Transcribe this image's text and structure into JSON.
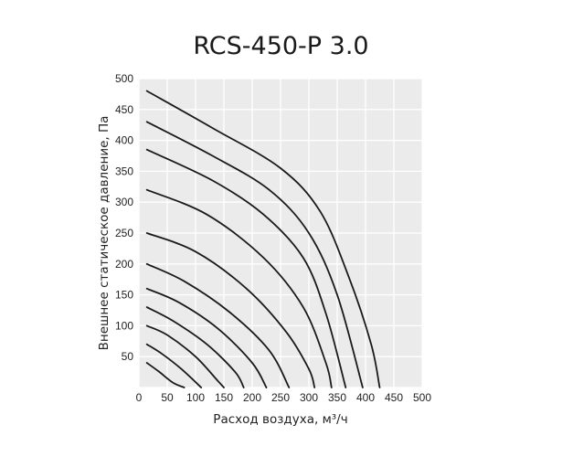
{
  "chart_data": {
    "type": "line",
    "title": "RCS-450-P 3.0",
    "xlabel": "Расход воздуха, м³/ч",
    "ylabel": "Внешнее статическое давление, Па",
    "xlim": [
      0,
      500
    ],
    "ylim": [
      0,
      500
    ],
    "x_ticks": [
      "0",
      "50",
      "100",
      "150",
      "200",
      "250",
      "300",
      "350",
      "400",
      "450",
      "500"
    ],
    "y_ticks": [
      "50",
      "100",
      "150",
      "200",
      "250",
      "300",
      "350",
      "400",
      "450",
      "500"
    ],
    "grid": true,
    "background": "#ebebeb",
    "line_color": "#1a1a1a",
    "series": [
      {
        "values": [
          [
            14,
            40
          ],
          [
            35,
            26
          ],
          [
            60,
            8
          ],
          [
            80,
            0
          ]
        ]
      },
      {
        "values": [
          [
            14,
            70
          ],
          [
            40,
            55
          ],
          [
            75,
            30
          ],
          [
            110,
            0
          ]
        ]
      },
      {
        "values": [
          [
            14,
            100
          ],
          [
            50,
            85
          ],
          [
            100,
            50
          ],
          [
            140,
            10
          ],
          [
            150,
            0
          ]
        ]
      },
      {
        "values": [
          [
            14,
            130
          ],
          [
            60,
            108
          ],
          [
            120,
            70
          ],
          [
            170,
            25
          ],
          [
            185,
            0
          ]
        ]
      },
      {
        "values": [
          [
            14,
            160
          ],
          [
            70,
            138
          ],
          [
            140,
            95
          ],
          [
            200,
            40
          ],
          [
            225,
            0
          ]
        ]
      },
      {
        "values": [
          [
            14,
            200
          ],
          [
            80,
            172
          ],
          [
            160,
            122
          ],
          [
            230,
            60
          ],
          [
            265,
            0
          ]
        ]
      },
      {
        "values": [
          [
            14,
            250
          ],
          [
            100,
            220
          ],
          [
            190,
            160
          ],
          [
            260,
            90
          ],
          [
            300,
            30
          ],
          [
            310,
            0
          ]
        ]
      },
      {
        "values": [
          [
            14,
            320
          ],
          [
            120,
            280
          ],
          [
            220,
            210
          ],
          [
            290,
            130
          ],
          [
            330,
            40
          ],
          [
            340,
            0
          ]
        ]
      },
      {
        "values": [
          [
            14,
            385
          ],
          [
            130,
            335
          ],
          [
            220,
            280
          ],
          [
            290,
            210
          ],
          [
            330,
            120
          ],
          [
            365,
            0
          ]
        ]
      },
      {
        "values": [
          [
            14,
            430
          ],
          [
            130,
            375
          ],
          [
            230,
            320
          ],
          [
            300,
            250
          ],
          [
            350,
            150
          ],
          [
            395,
            0
          ]
        ]
      },
      {
        "values": [
          [
            14,
            480
          ],
          [
            130,
            420
          ],
          [
            250,
            355
          ],
          [
            320,
            285
          ],
          [
            370,
            180
          ],
          [
            410,
            70
          ],
          [
            425,
            0
          ]
        ]
      }
    ]
  }
}
